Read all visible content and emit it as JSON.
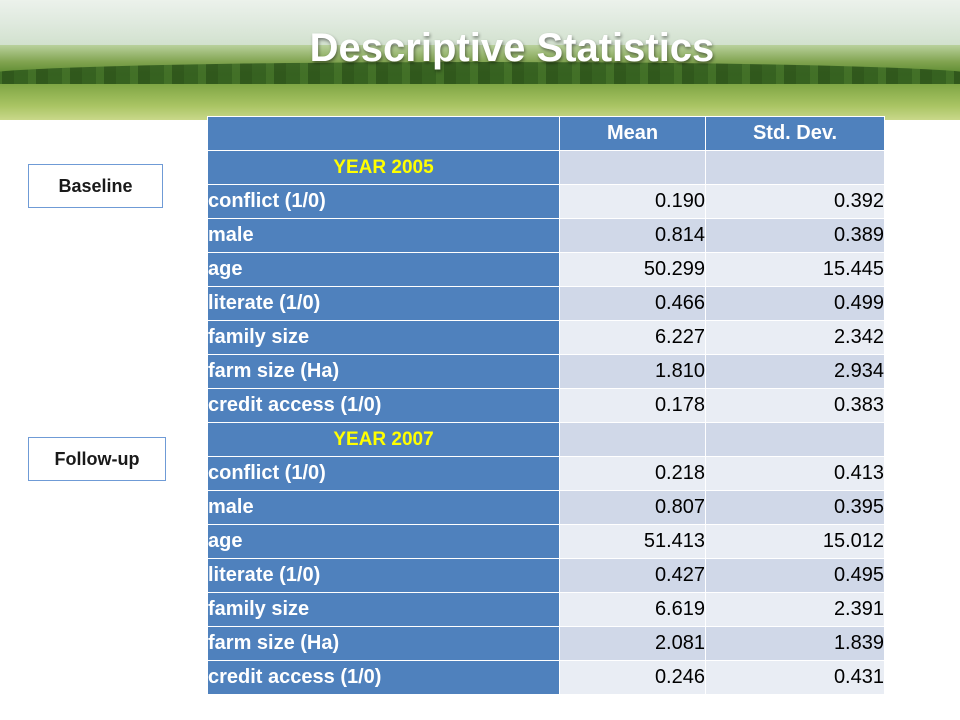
{
  "slide": {
    "title": "Descriptive Statistics",
    "side_labels": {
      "baseline": "Baseline",
      "followup": "Follow-up"
    }
  },
  "table": {
    "headers": [
      "",
      "Mean",
      "Std. Dev."
    ],
    "sections": [
      {
        "year": "YEAR 2005",
        "rows": [
          {
            "label": "conflict (1/0)",
            "mean": "0.190",
            "sd": "0.392"
          },
          {
            "label": "male",
            "mean": "0.814",
            "sd": "0.389"
          },
          {
            "label": "age",
            "mean": "50.299",
            "sd": "15.445"
          },
          {
            "label": "literate (1/0)",
            "mean": "0.466",
            "sd": "0.499"
          },
          {
            "label": "family size",
            "mean": "6.227",
            "sd": "2.342"
          },
          {
            "label": "farm size (Ha)",
            "mean": "1.810",
            "sd": "2.934"
          },
          {
            "label": "credit access (1/0)",
            "mean": "0.178",
            "sd": "0.383"
          }
        ]
      },
      {
        "year": "YEAR 2007",
        "rows": [
          {
            "label": "conflict (1/0)",
            "mean": "0.218",
            "sd": "0.413"
          },
          {
            "label": "male",
            "mean": "0.807",
            "sd": "0.395"
          },
          {
            "label": "age",
            "mean": "51.413",
            "sd": "15.012"
          },
          {
            "label": "literate (1/0)",
            "mean": "0.427",
            "sd": "0.495"
          },
          {
            "label": "family size",
            "mean": "6.619",
            "sd": "2.391"
          },
          {
            "label": "farm size (Ha)",
            "mean": "2.081",
            "sd": "1.839"
          },
          {
            "label": "credit access (1/0)",
            "mean": "0.246",
            "sd": "0.431"
          }
        ]
      }
    ]
  },
  "colors": {
    "header_blue": "#4f81bd",
    "year_yellow": "#ffff00",
    "row_light": "#d0d8e8",
    "row_lighter": "#e9edf4"
  }
}
